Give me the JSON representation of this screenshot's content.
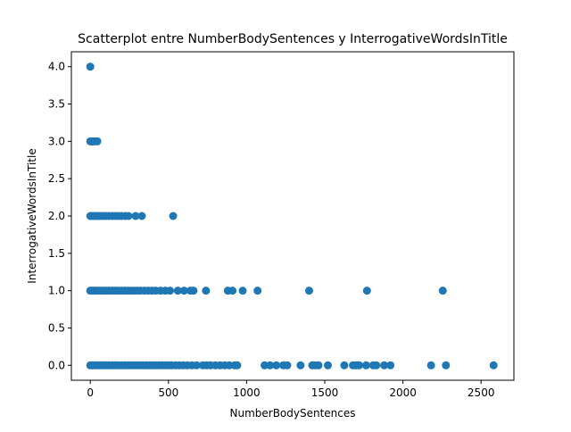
{
  "chart_data": {
    "type": "scatter",
    "title": "Scatterplot entre NumberBodySentences y InterrogativeWordsInTitle",
    "xlabel": "NumberBodySentences",
    "ylabel": "InterrogativeWordsInTitle",
    "xlim": [
      -121,
      2710
    ],
    "ylim": [
      -0.2,
      4.2
    ],
    "xticks": [
      0,
      500,
      1000,
      1500,
      2000,
      2500
    ],
    "xtick_labels": [
      "0",
      "500",
      "1000",
      "1500",
      "2000",
      "2500"
    ],
    "yticks": [
      0.0,
      0.5,
      1.0,
      1.5,
      2.0,
      2.5,
      3.0,
      3.5,
      4.0
    ],
    "ytick_labels": [
      "0.0",
      "0.5",
      "1.0",
      "1.5",
      "2.0",
      "2.5",
      "3.0",
      "3.5",
      "4.0"
    ],
    "grid": false,
    "marker_color": "#1f77b4",
    "points": [
      {
        "x": 0,
        "y": 4
      },
      {
        "x": 0,
        "y": 3
      },
      {
        "x": 5,
        "y": 3
      },
      {
        "x": 10,
        "y": 3
      },
      {
        "x": 15,
        "y": 3
      },
      {
        "x": 20,
        "y": 3
      },
      {
        "x": 30,
        "y": 3
      },
      {
        "x": 45,
        "y": 3
      },
      {
        "x": 0,
        "y": 2
      },
      {
        "x": 10,
        "y": 2
      },
      {
        "x": 20,
        "y": 2
      },
      {
        "x": 30,
        "y": 2
      },
      {
        "x": 40,
        "y": 2
      },
      {
        "x": 55,
        "y": 2
      },
      {
        "x": 70,
        "y": 2
      },
      {
        "x": 85,
        "y": 2
      },
      {
        "x": 100,
        "y": 2
      },
      {
        "x": 120,
        "y": 2
      },
      {
        "x": 140,
        "y": 2
      },
      {
        "x": 160,
        "y": 2
      },
      {
        "x": 180,
        "y": 2
      },
      {
        "x": 200,
        "y": 2
      },
      {
        "x": 225,
        "y": 2
      },
      {
        "x": 245,
        "y": 2
      },
      {
        "x": 290,
        "y": 2
      },
      {
        "x": 330,
        "y": 2
      },
      {
        "x": 530,
        "y": 2
      },
      {
        "x": 0,
        "y": 1
      },
      {
        "x": 10,
        "y": 1
      },
      {
        "x": 20,
        "y": 1
      },
      {
        "x": 30,
        "y": 1
      },
      {
        "x": 45,
        "y": 1
      },
      {
        "x": 60,
        "y": 1
      },
      {
        "x": 75,
        "y": 1
      },
      {
        "x": 90,
        "y": 1
      },
      {
        "x": 105,
        "y": 1
      },
      {
        "x": 120,
        "y": 1
      },
      {
        "x": 140,
        "y": 1
      },
      {
        "x": 160,
        "y": 1
      },
      {
        "x": 180,
        "y": 1
      },
      {
        "x": 200,
        "y": 1
      },
      {
        "x": 220,
        "y": 1
      },
      {
        "x": 240,
        "y": 1
      },
      {
        "x": 260,
        "y": 1
      },
      {
        "x": 280,
        "y": 1
      },
      {
        "x": 300,
        "y": 1
      },
      {
        "x": 320,
        "y": 1
      },
      {
        "x": 345,
        "y": 1
      },
      {
        "x": 370,
        "y": 1
      },
      {
        "x": 395,
        "y": 1
      },
      {
        "x": 420,
        "y": 1
      },
      {
        "x": 450,
        "y": 1
      },
      {
        "x": 480,
        "y": 1
      },
      {
        "x": 510,
        "y": 1
      },
      {
        "x": 560,
        "y": 1
      },
      {
        "x": 600,
        "y": 1
      },
      {
        "x": 640,
        "y": 1
      },
      {
        "x": 660,
        "y": 1
      },
      {
        "x": 740,
        "y": 1
      },
      {
        "x": 880,
        "y": 1
      },
      {
        "x": 910,
        "y": 1
      },
      {
        "x": 975,
        "y": 1
      },
      {
        "x": 1070,
        "y": 1
      },
      {
        "x": 1400,
        "y": 1
      },
      {
        "x": 1770,
        "y": 1
      },
      {
        "x": 2255,
        "y": 1
      },
      {
        "x": 0,
        "y": 0
      },
      {
        "x": 15,
        "y": 0
      },
      {
        "x": 30,
        "y": 0
      },
      {
        "x": 45,
        "y": 0
      },
      {
        "x": 60,
        "y": 0
      },
      {
        "x": 75,
        "y": 0
      },
      {
        "x": 90,
        "y": 0
      },
      {
        "x": 105,
        "y": 0
      },
      {
        "x": 120,
        "y": 0
      },
      {
        "x": 140,
        "y": 0
      },
      {
        "x": 160,
        "y": 0
      },
      {
        "x": 180,
        "y": 0
      },
      {
        "x": 200,
        "y": 0
      },
      {
        "x": 220,
        "y": 0
      },
      {
        "x": 240,
        "y": 0
      },
      {
        "x": 260,
        "y": 0
      },
      {
        "x": 280,
        "y": 0
      },
      {
        "x": 300,
        "y": 0
      },
      {
        "x": 320,
        "y": 0
      },
      {
        "x": 340,
        "y": 0
      },
      {
        "x": 360,
        "y": 0
      },
      {
        "x": 380,
        "y": 0
      },
      {
        "x": 400,
        "y": 0
      },
      {
        "x": 420,
        "y": 0
      },
      {
        "x": 440,
        "y": 0
      },
      {
        "x": 460,
        "y": 0
      },
      {
        "x": 480,
        "y": 0
      },
      {
        "x": 500,
        "y": 0
      },
      {
        "x": 520,
        "y": 0
      },
      {
        "x": 545,
        "y": 0
      },
      {
        "x": 570,
        "y": 0
      },
      {
        "x": 595,
        "y": 0
      },
      {
        "x": 620,
        "y": 0
      },
      {
        "x": 650,
        "y": 0
      },
      {
        "x": 680,
        "y": 0
      },
      {
        "x": 720,
        "y": 0
      },
      {
        "x": 745,
        "y": 0
      },
      {
        "x": 770,
        "y": 0
      },
      {
        "x": 800,
        "y": 0
      },
      {
        "x": 830,
        "y": 0
      },
      {
        "x": 860,
        "y": 0
      },
      {
        "x": 890,
        "y": 0
      },
      {
        "x": 925,
        "y": 0
      },
      {
        "x": 940,
        "y": 0
      },
      {
        "x": 1115,
        "y": 0
      },
      {
        "x": 1150,
        "y": 0
      },
      {
        "x": 1190,
        "y": 0
      },
      {
        "x": 1235,
        "y": 0
      },
      {
        "x": 1260,
        "y": 0
      },
      {
        "x": 1345,
        "y": 0
      },
      {
        "x": 1420,
        "y": 0
      },
      {
        "x": 1440,
        "y": 0
      },
      {
        "x": 1460,
        "y": 0
      },
      {
        "x": 1520,
        "y": 0
      },
      {
        "x": 1625,
        "y": 0
      },
      {
        "x": 1680,
        "y": 0
      },
      {
        "x": 1700,
        "y": 0
      },
      {
        "x": 1720,
        "y": 0
      },
      {
        "x": 1765,
        "y": 0
      },
      {
        "x": 1810,
        "y": 0
      },
      {
        "x": 1830,
        "y": 0
      },
      {
        "x": 1880,
        "y": 0
      },
      {
        "x": 1920,
        "y": 0
      },
      {
        "x": 2180,
        "y": 0
      },
      {
        "x": 2275,
        "y": 0
      },
      {
        "x": 2580,
        "y": 0
      }
    ]
  }
}
